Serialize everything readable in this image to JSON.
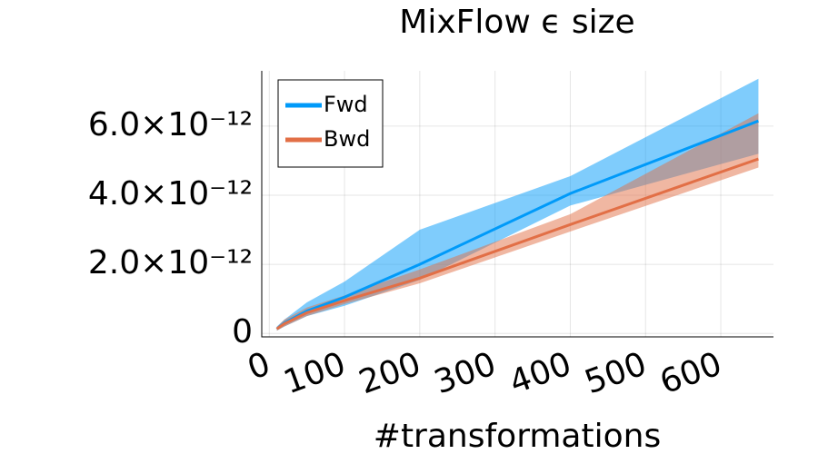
{
  "chart_data": {
    "type": "line",
    "title": "MixFlow ϵ size",
    "xlabel": "#transformations",
    "x": [
      10,
      20,
      50,
      100,
      200,
      400,
      650
    ],
    "series": [
      {
        "name": "Fwd",
        "color": "#009af9",
        "values": [
          1.3e-13,
          3e-13,
          6.5e-13,
          1.05e-12,
          2e-12,
          4.05e-12,
          6.15e-12
        ],
        "upper": [
          2e-13,
          4e-13,
          9e-13,
          1.5e-12,
          3e-12,
          4.55e-12,
          7.37e-12
        ],
        "lower": [
          8e-14,
          2e-13,
          5e-13,
          8e-13,
          1.55e-12,
          3.7e-12,
          5.2e-12
        ]
      },
      {
        "name": "Bwd",
        "color": "#e26f46",
        "values": [
          1.3e-13,
          2.8e-13,
          6e-13,
          9.5e-13,
          1.6e-12,
          3.15e-12,
          5.05e-12
        ],
        "upper": [
          1.8e-13,
          4e-13,
          7.5e-13,
          1.1e-12,
          1.85e-12,
          3.45e-12,
          6.37e-12
        ],
        "lower": [
          8e-14,
          2e-13,
          5e-13,
          8.5e-13,
          1.45e-12,
          2.95e-12,
          4.8e-12
        ]
      }
    ],
    "xlim": [
      -10,
      670
    ],
    "ylim": [
      -1e-13,
      7.6e-12
    ],
    "xticks": [
      0,
      100,
      200,
      300,
      400,
      500,
      600
    ],
    "yticks": [
      0,
      {
        "value": 2e-12,
        "label": "2.0×10⁻¹²"
      },
      {
        "value": 4e-12,
        "label": "4.0×10⁻¹²"
      },
      {
        "value": 6e-12,
        "label": "6.0×10⁻¹²"
      }
    ],
    "grid": true,
    "legend": "top-left"
  }
}
